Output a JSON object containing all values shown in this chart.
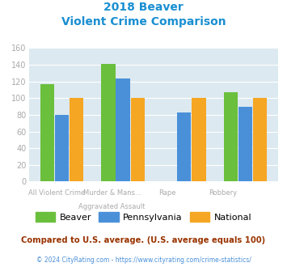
{
  "title_line1": "2018 Beaver",
  "title_line2": "Violent Crime Comparison",
  "cat_labels_top": [
    "",
    "Murder & Mans...",
    "",
    ""
  ],
  "cat_labels_bot": [
    "All Violent Crime",
    "Aggravated Assault",
    "Rape",
    "Robbery"
  ],
  "beaver": [
    117,
    141,
    0,
    107
  ],
  "pennsylvania": [
    80,
    124,
    83,
    90
  ],
  "national": [
    100,
    100,
    100,
    100
  ],
  "beaver_color": "#6abf3c",
  "pennsylvania_color": "#4a90d9",
  "national_color": "#f5a623",
  "ylim": [
    0,
    160
  ],
  "yticks": [
    0,
    20,
    40,
    60,
    80,
    100,
    120,
    140,
    160
  ],
  "background_color": "#dce9f0",
  "title_color": "#1a8fd1",
  "footer_text": "Compared to U.S. average. (U.S. average equals 100)",
  "copyright_text": "© 2024 CityRating.com - https://www.cityrating.com/crime-statistics/",
  "footer_color": "#993300",
  "copyright_color": "#4a90d9",
  "tick_color": "#aaaaaa",
  "label_color": "#aaaaaa"
}
